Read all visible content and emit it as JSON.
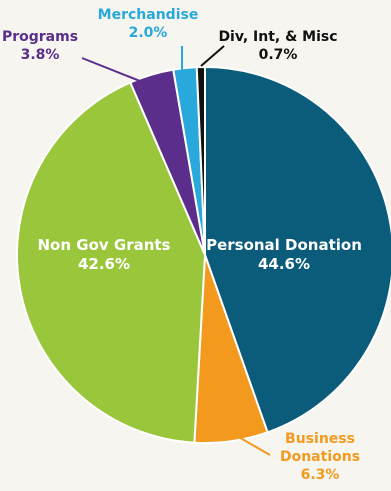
{
  "chart_data": {
    "type": "pie",
    "slices": [
      {
        "label": "Personal Donation",
        "value": 44.6,
        "value_label": "44.6%",
        "color": "#0a5c7a",
        "label_color": "#ffffff"
      },
      {
        "label": "Business Donations",
        "value": 6.3,
        "value_label": "6.3%",
        "color": "#f39a1e",
        "label_color": "#f39a1e"
      },
      {
        "label": "Non Gov Grants",
        "value": 42.6,
        "value_label": "42.6%",
        "color": "#9ac63b",
        "label_color": "#ffffff"
      },
      {
        "label": "Programs",
        "value": 3.8,
        "value_label": "3.8%",
        "color": "#5a2e8a",
        "label_color": "#5a2e8a"
      },
      {
        "label": "Merchandise",
        "value": 2.0,
        "value_label": "2.0%",
        "color": "#29a8dc",
        "label_color": "#29a8dc"
      },
      {
        "label": "Div, Int, & Misc",
        "value": 0.7,
        "value_label": "0.7%",
        "color": "#111111",
        "label_color": "#111111"
      }
    ],
    "start": "top, clockwise",
    "legend": "none"
  },
  "colors": {
    "background": "#f7f5ef",
    "slice_border": "#ffffff"
  }
}
